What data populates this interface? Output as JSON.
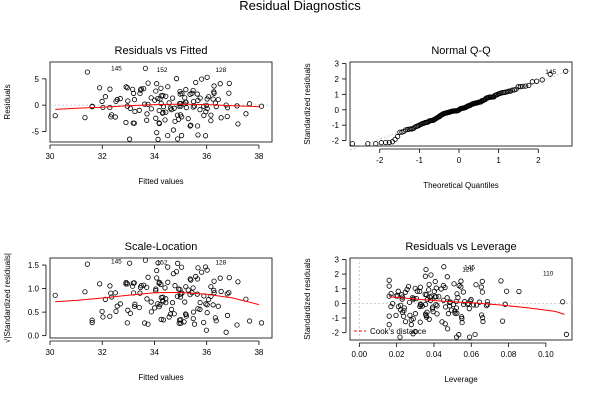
{
  "title": "Residual Diagnostics",
  "colors": {
    "points": "#000000",
    "smooth": "#ff0000",
    "reference": "#bebebe",
    "axis": "#000000"
  },
  "chart_data": [
    {
      "type": "scatter",
      "title": "Residuals vs Fitted",
      "xlabel": "Fitted values",
      "ylabel": "Residuals",
      "xlim": [
        30,
        38.5
      ],
      "ylim": [
        -7,
        8.2
      ],
      "xticks": [
        "30",
        "32",
        "34",
        "36",
        "38"
      ],
      "yticks": [
        "-5",
        "0",
        "5"
      ],
      "xtick_values": [
        30,
        32,
        34,
        36,
        38
      ],
      "ytick_values": [
        -5,
        0,
        5
      ],
      "reference_line_y": 0,
      "labels": [
        {
          "text": "145",
          "x": 32.75,
          "y": 7.0
        },
        {
          "text": "152",
          "x": 34.5,
          "y": 6.7
        },
        {
          "text": "128",
          "x": 36.75,
          "y": 6.7
        }
      ],
      "smooth": {
        "x": [
          30.2,
          31.0,
          32.0,
          33.0,
          34.0,
          35.0,
          36.0,
          37.0,
          38.0
        ],
        "y": [
          -0.8,
          -0.6,
          -0.4,
          -0.1,
          0.1,
          0.2,
          0.1,
          -0.1,
          -0.3
        ]
      }
    },
    {
      "type": "scatter",
      "title": "Normal Q-Q",
      "xlabel": "Theoretical Quantiles",
      "ylabel": "Standardized residuals",
      "xlim": [
        -2.75,
        2.85
      ],
      "ylim": [
        -2.35,
        3.1
      ],
      "xticks": [
        "-2",
        "-1",
        "0",
        "1",
        "2"
      ],
      "yticks": [
        "-2",
        "-1",
        "0",
        "1",
        "2",
        "3"
      ],
      "xtick_values": [
        -2,
        -1,
        0,
        1,
        2
      ],
      "ytick_values": [
        -2,
        -1,
        0,
        1,
        2,
        3
      ],
      "qq_line": {
        "x": [
          -2.75,
          2.85
        ],
        "y": [
          -2.6,
          2.6
        ]
      },
      "labels": [
        {
          "text": "145",
          "x": 2.45,
          "y": 2.45
        }
      ]
    },
    {
      "type": "scatter",
      "title": "Scale-Location",
      "xlabel": "Fitted values",
      "ylabel": "√|Standardized residuals|",
      "xlim": [
        30,
        38.5
      ],
      "ylim": [
        -0.05,
        1.65
      ],
      "xticks": [
        "30",
        "32",
        "34",
        "36",
        "38"
      ],
      "yticks": [
        "0.0",
        "0.5",
        "1.0",
        "1.5"
      ],
      "xtick_values": [
        30,
        32,
        34,
        36,
        38
      ],
      "ytick_values": [
        0,
        0.5,
        1.0,
        1.5
      ],
      "labels": [
        {
          "text": "145",
          "x": 32.75,
          "y": 1.58
        },
        {
          "text": "152",
          "x": 34.5,
          "y": 1.55
        },
        {
          "text": "128",
          "x": 36.75,
          "y": 1.55
        }
      ],
      "smooth": {
        "x": [
          30.2,
          31.0,
          32.0,
          33.0,
          34.0,
          35.0,
          36.0,
          37.0,
          38.0
        ],
        "y": [
          0.72,
          0.75,
          0.8,
          0.86,
          0.91,
          0.92,
          0.88,
          0.8,
          0.66
        ]
      }
    },
    {
      "type": "scatter",
      "title": "Residuals vs Leverage",
      "xlabel": "Leverage",
      "ylabel": "Standardized residuals",
      "xlim": [
        -0.005,
        0.114
      ],
      "ylim": [
        -2.5,
        3.1
      ],
      "xticks": [
        "0.00",
        "0.02",
        "0.04",
        "0.06",
        "0.08",
        "0.10"
      ],
      "yticks": [
        "-2",
        "-1",
        "0",
        "1",
        "2",
        "3"
      ],
      "xtick_values": [
        0,
        0.02,
        0.04,
        0.06,
        0.08,
        0.1
      ],
      "ytick_values": [
        -2,
        -1,
        0,
        1,
        2,
        3
      ],
      "reference_line_y": 0,
      "reference_line_x": 0,
      "labels": [
        {
          "text": "145",
          "x": 0.062,
          "y": 2.45
        },
        {
          "text": "128",
          "x": 0.061,
          "y": 2.3
        },
        {
          "text": "110",
          "x": 0.104,
          "y": 2.05
        }
      ],
      "legend": {
        "text": "Cook's distance",
        "placement": "bottom-left"
      },
      "smooth": {
        "x": [
          0.016,
          0.03,
          0.045,
          0.06,
          0.075,
          0.09,
          0.105,
          0.11
        ],
        "y": [
          0.45,
          0.3,
          0.15,
          0.05,
          -0.1,
          -0.3,
          -0.55,
          -0.75
        ]
      }
    }
  ]
}
